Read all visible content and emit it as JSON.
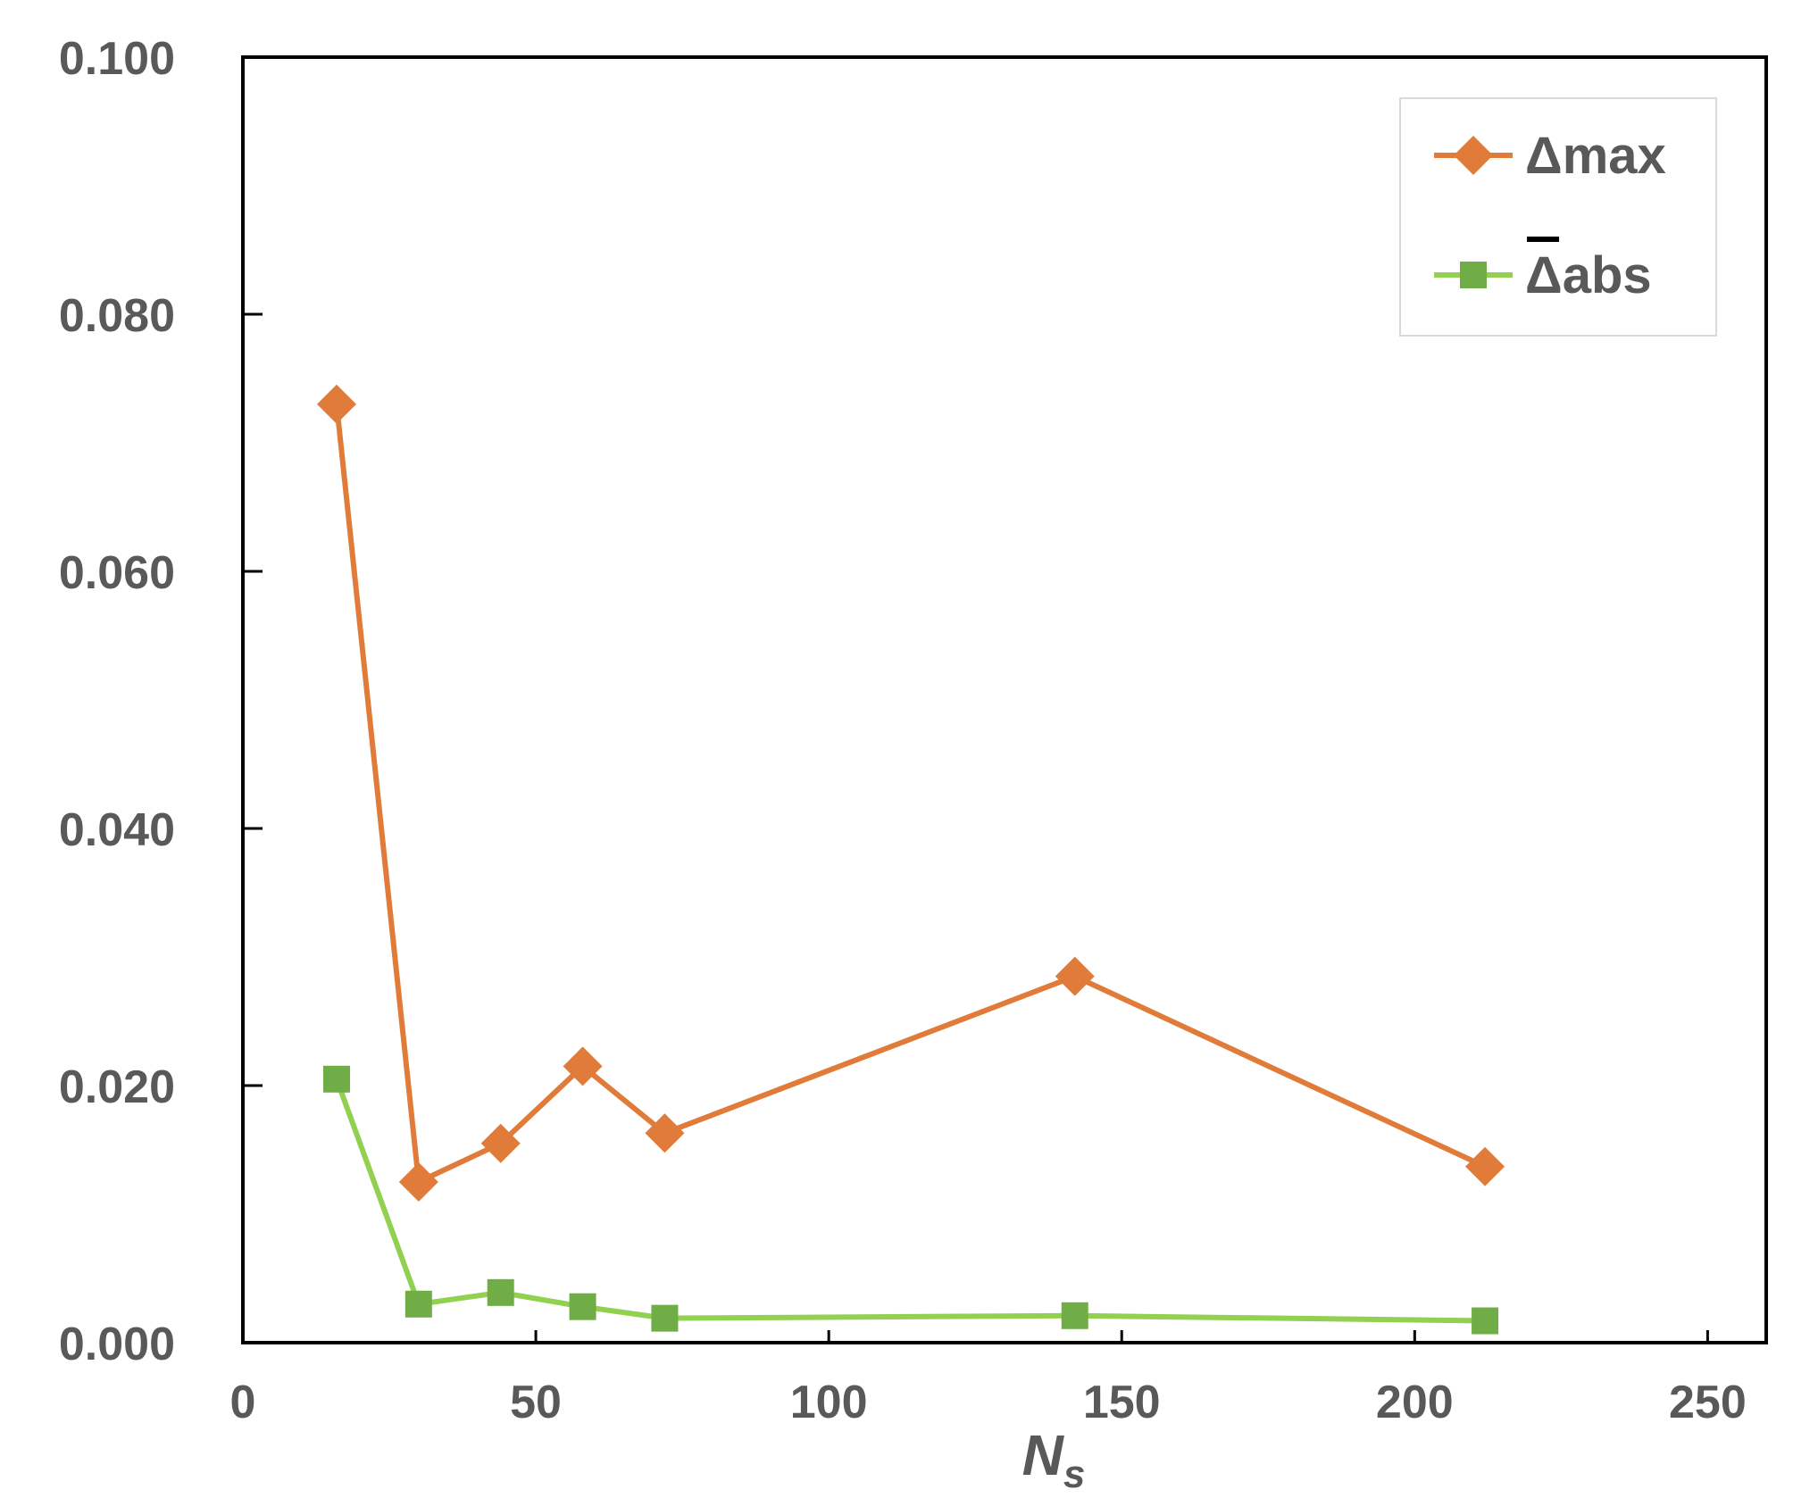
{
  "chart_data": {
    "type": "line",
    "x_axis": {
      "label_main": "N",
      "label_sub": "s",
      "range": [
        0,
        260
      ],
      "ticks": [
        0,
        50,
        100,
        150,
        200,
        250
      ],
      "tick_labels": [
        "0",
        "50",
        "100",
        "150",
        "200",
        "250"
      ]
    },
    "y_axis": {
      "range": [
        0,
        0.1
      ],
      "ticks": [
        0,
        0.02,
        0.04,
        0.06,
        0.08,
        0.1
      ],
      "tick_labels": [
        "0.000",
        "0.020",
        "0.040",
        "0.060",
        "0.080",
        "0.100"
      ]
    },
    "grid": false,
    "legend_position": "top-right",
    "series": [
      {
        "name": "Δmax",
        "legend_label": "Δmax",
        "color": "#e07b39",
        "line_color": "#e07b39",
        "marker": "diamond",
        "points": [
          {
            "x": 16,
            "y": 0.073
          },
          {
            "x": 30,
            "y": 0.0125
          },
          {
            "x": 44,
            "y": 0.0155
          },
          {
            "x": 58,
            "y": 0.0215
          },
          {
            "x": 72,
            "y": 0.0163
          },
          {
            "x": 142,
            "y": 0.0285
          },
          {
            "x": 212,
            "y": 0.0137
          }
        ]
      },
      {
        "name": "Δabs",
        "legend_label": "Δabs",
        "legend_overbar": true,
        "color": "#70ad47",
        "line_color": "#92d050",
        "marker": "square",
        "points": [
          {
            "x": 16,
            "y": 0.0205
          },
          {
            "x": 30,
            "y": 0.003
          },
          {
            "x": 44,
            "y": 0.0039
          },
          {
            "x": 58,
            "y": 0.0028
          },
          {
            "x": 72,
            "y": 0.0019
          },
          {
            "x": 142,
            "y": 0.0021
          },
          {
            "x": 212,
            "y": 0.0017
          }
        ]
      }
    ]
  }
}
